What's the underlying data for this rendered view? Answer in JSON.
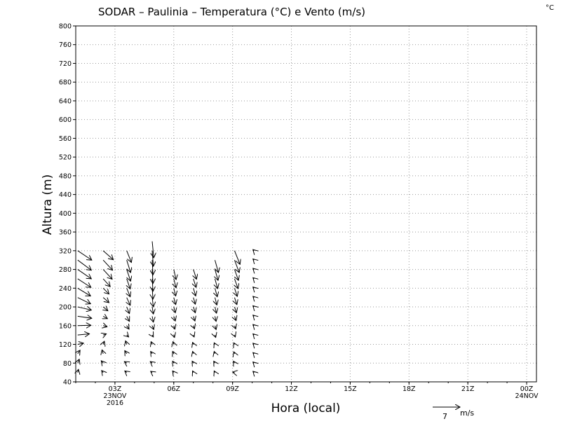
{
  "chart_data": {
    "type": "wind-barb-profile",
    "title": "SODAR – Paulinia – Temperatura (°C) e Vento (m/s)",
    "unit_corner": "°C",
    "xlabel": "Hora (local)",
    "ylabel": "Altura (m)",
    "xlim": [
      0,
      23.5
    ],
    "ylim": [
      40,
      800
    ],
    "grid": true,
    "y_ticks": [
      40,
      80,
      120,
      160,
      200,
      240,
      280,
      320,
      360,
      400,
      440,
      480,
      520,
      560,
      600,
      640,
      680,
      720,
      760,
      800
    ],
    "x_ticks": [
      {
        "x": 2,
        "label": "03Z",
        "sub": [
          "23NOV",
          "2016"
        ]
      },
      {
        "x": 5,
        "label": "06Z",
        "sub": []
      },
      {
        "x": 8,
        "label": "09Z",
        "sub": []
      },
      {
        "x": 11,
        "label": "12Z",
        "sub": []
      },
      {
        "x": 14,
        "label": "15Z",
        "sub": []
      },
      {
        "x": 17,
        "label": "18Z",
        "sub": []
      },
      {
        "x": 20,
        "label": "21Z",
        "sub": []
      },
      {
        "x": 23,
        "label": "00Z",
        "sub": [
          "24NOV"
        ]
      }
    ],
    "reference_vector": {
      "speed": 7,
      "unit": "m/s"
    },
    "series": [
      {
        "time": 0.1,
        "vectors": [
          {
            "h": 320,
            "u": 3.6,
            "v": -2.4
          },
          {
            "h": 300,
            "u": 3.5,
            "v": -2.6
          },
          {
            "h": 280,
            "u": 3.5,
            "v": -2.4
          },
          {
            "h": 260,
            "u": 3.4,
            "v": -2.2
          },
          {
            "h": 240,
            "u": 3.3,
            "v": -2.0
          },
          {
            "h": 220,
            "u": 3.3,
            "v": -1.6
          },
          {
            "h": 200,
            "u": 3.5,
            "v": -0.8
          },
          {
            "h": 180,
            "u": 3.6,
            "v": -0.5
          },
          {
            "h": 160,
            "u": 3.4,
            "v": 0.1
          },
          {
            "h": 140,
            "u": 3.0,
            "v": 0.3
          },
          {
            "h": 120,
            "u": 1.5,
            "v": 0.3
          },
          {
            "h": 100,
            "u": 0.6,
            "v": 0.9
          },
          {
            "h": 80,
            "u": 0.4,
            "v": 1.0
          },
          {
            "h": 60,
            "u": 0.2,
            "v": 0.8
          }
        ]
      },
      {
        "time": 1.4,
        "vectors": [
          {
            "h": 320,
            "u": 2.6,
            "v": -2.3
          },
          {
            "h": 300,
            "u": 2.4,
            "v": -2.6
          },
          {
            "h": 280,
            "u": 2.3,
            "v": -2.5
          },
          {
            "h": 260,
            "u": 1.8,
            "v": -2.0
          },
          {
            "h": 240,
            "u": 1.5,
            "v": -1.5
          },
          {
            "h": 220,
            "u": 1.5,
            "v": -1.3
          },
          {
            "h": 200,
            "u": 1.2,
            "v": -1.0
          },
          {
            "h": 180,
            "u": 1.1,
            "v": -0.6
          },
          {
            "h": 160,
            "u": 1.0,
            "v": -0.3
          },
          {
            "h": 140,
            "u": 0.8,
            "v": 0.3
          },
          {
            "h": 120,
            "u": 0.3,
            "v": 0.8
          },
          {
            "h": 100,
            "u": -0.3,
            "v": 1.0
          },
          {
            "h": 80,
            "u": -0.5,
            "v": 0.6
          },
          {
            "h": 60,
            "u": -0.4,
            "v": 0.5
          }
        ]
      },
      {
        "time": 2.6,
        "vectors": [
          {
            "h": 320,
            "u": 1.2,
            "v": -3.0
          },
          {
            "h": 300,
            "u": 1.0,
            "v": -3.2
          },
          {
            "h": 280,
            "u": 1.0,
            "v": -3.0
          },
          {
            "h": 260,
            "u": 0.9,
            "v": -2.6
          },
          {
            "h": 240,
            "u": 0.9,
            "v": -2.2
          },
          {
            "h": 220,
            "u": 0.9,
            "v": -2.0
          },
          {
            "h": 200,
            "u": 0.7,
            "v": -1.7
          },
          {
            "h": 180,
            "u": 0.7,
            "v": -1.3
          },
          {
            "h": 160,
            "u": 0.6,
            "v": -0.9
          },
          {
            "h": 140,
            "u": 0.5,
            "v": -0.5
          },
          {
            "h": 120,
            "u": -0.3,
            "v": 0.9
          },
          {
            "h": 100,
            "u": -0.5,
            "v": 0.8
          },
          {
            "h": 80,
            "u": -0.6,
            "v": 0.4
          },
          {
            "h": 60,
            "u": -0.5,
            "v": 0.4
          }
        ]
      },
      {
        "time": 3.9,
        "vectors": [
          {
            "h": 340,
            "u": 0.4,
            "v": -4.2
          },
          {
            "h": 320,
            "u": 0.3,
            "v": -4.0
          },
          {
            "h": 300,
            "u": 0.2,
            "v": -3.8
          },
          {
            "h": 280,
            "u": 0.2,
            "v": -3.6
          },
          {
            "h": 260,
            "u": 0.2,
            "v": -3.2
          },
          {
            "h": 240,
            "u": 0.2,
            "v": -2.8
          },
          {
            "h": 220,
            "u": 0.3,
            "v": -2.4
          },
          {
            "h": 200,
            "u": 0.3,
            "v": -1.8
          },
          {
            "h": 180,
            "u": 0.3,
            "v": -1.5
          },
          {
            "h": 160,
            "u": 0.4,
            "v": -1.0
          },
          {
            "h": 140,
            "u": 0.3,
            "v": -0.5
          },
          {
            "h": 120,
            "u": -0.3,
            "v": 0.7
          },
          {
            "h": 100,
            "u": -0.4,
            "v": 0.6
          },
          {
            "h": 80,
            "u": -0.5,
            "v": 0.4
          },
          {
            "h": 60,
            "u": -0.4,
            "v": 0.3
          }
        ]
      },
      {
        "time": 5.0,
        "vectors": [
          {
            "h": 280,
            "u": 0.6,
            "v": -2.6
          },
          {
            "h": 260,
            "u": 0.6,
            "v": -2.3
          },
          {
            "h": 240,
            "u": 0.5,
            "v": -2.0
          },
          {
            "h": 220,
            "u": 0.5,
            "v": -1.8
          },
          {
            "h": 200,
            "u": 0.4,
            "v": -1.5
          },
          {
            "h": 180,
            "u": 0.4,
            "v": -1.2
          },
          {
            "h": 160,
            "u": 0.3,
            "v": -0.9
          },
          {
            "h": 140,
            "u": 0.2,
            "v": -0.6
          },
          {
            "h": 120,
            "u": -0.2,
            "v": 0.7
          },
          {
            "h": 100,
            "u": -0.3,
            "v": 0.6
          },
          {
            "h": 80,
            "u": -0.3,
            "v": 0.5
          },
          {
            "h": 60,
            "u": -0.3,
            "v": 0.4
          }
        ]
      },
      {
        "time": 6.0,
        "vectors": [
          {
            "h": 280,
            "u": 0.8,
            "v": -2.5
          },
          {
            "h": 260,
            "u": 0.7,
            "v": -2.2
          },
          {
            "h": 240,
            "u": 0.6,
            "v": -2.0
          },
          {
            "h": 220,
            "u": 0.5,
            "v": -1.7
          },
          {
            "h": 200,
            "u": 0.5,
            "v": -1.5
          },
          {
            "h": 180,
            "u": 0.4,
            "v": -1.2
          },
          {
            "h": 160,
            "u": 0.3,
            "v": -0.8
          },
          {
            "h": 140,
            "u": 0.2,
            "v": -0.5
          },
          {
            "h": 120,
            "u": -0.2,
            "v": 0.5
          },
          {
            "h": 100,
            "u": -0.2,
            "v": 0.6
          },
          {
            "h": 80,
            "u": -0.3,
            "v": 0.5
          },
          {
            "h": 60,
            "u": -0.2,
            "v": 0.4
          }
        ]
      },
      {
        "time": 7.1,
        "vectors": [
          {
            "h": 300,
            "u": 0.9,
            "v": -3.2
          },
          {
            "h": 280,
            "u": 0.8,
            "v": -2.8
          },
          {
            "h": 260,
            "u": 0.7,
            "v": -2.5
          },
          {
            "h": 240,
            "u": 0.6,
            "v": -2.2
          },
          {
            "h": 220,
            "u": 0.5,
            "v": -1.9
          },
          {
            "h": 200,
            "u": 0.4,
            "v": -1.6
          },
          {
            "h": 180,
            "u": 0.3,
            "v": -1.3
          },
          {
            "h": 160,
            "u": 0.3,
            "v": -1.0
          },
          {
            "h": 140,
            "u": 0.2,
            "v": -0.6
          },
          {
            "h": 120,
            "u": -0.2,
            "v": 0.4
          },
          {
            "h": 100,
            "u": -0.2,
            "v": 0.6
          },
          {
            "h": 80,
            "u": -0.3,
            "v": 0.5
          },
          {
            "h": 60,
            "u": -0.2,
            "v": 0.4
          }
        ]
      },
      {
        "time": 8.1,
        "vectors": [
          {
            "h": 320,
            "u": 1.4,
            "v": -3.5
          },
          {
            "h": 300,
            "u": 1.2,
            "v": -3.2
          },
          {
            "h": 280,
            "u": 1.0,
            "v": -2.8
          },
          {
            "h": 260,
            "u": 0.9,
            "v": -2.5
          },
          {
            "h": 240,
            "u": 0.7,
            "v": -2.1
          },
          {
            "h": 220,
            "u": 0.6,
            "v": -1.8
          },
          {
            "h": 200,
            "u": 0.5,
            "v": -1.5
          },
          {
            "h": 180,
            "u": 0.4,
            "v": -1.1
          },
          {
            "h": 160,
            "u": 0.3,
            "v": -0.8
          },
          {
            "h": 140,
            "u": 0.2,
            "v": -0.5
          },
          {
            "h": 120,
            "u": -0.2,
            "v": 0.4
          },
          {
            "h": 100,
            "u": -0.2,
            "v": 0.5
          },
          {
            "h": 80,
            "u": -0.3,
            "v": 0.5
          },
          {
            "h": 60,
            "u": -0.5,
            "v": 0.1
          }
        ]
      },
      {
        "time": 9.1,
        "vectors": [
          {
            "h": 320,
            "u": -0.3,
            "v": 0.3
          },
          {
            "h": 300,
            "u": -0.3,
            "v": 0.3
          },
          {
            "h": 280,
            "u": -0.3,
            "v": 0.3
          },
          {
            "h": 260,
            "u": -0.3,
            "v": 0.3
          },
          {
            "h": 240,
            "u": -0.3,
            "v": 0.3
          },
          {
            "h": 220,
            "u": -0.3,
            "v": 0.3
          },
          {
            "h": 200,
            "u": -0.3,
            "v": 0.3
          },
          {
            "h": 180,
            "u": -0.3,
            "v": 0.3
          },
          {
            "h": 160,
            "u": -0.3,
            "v": 0.3
          },
          {
            "h": 140,
            "u": -0.3,
            "v": 0.3
          },
          {
            "h": 120,
            "u": -0.3,
            "v": 0.3
          },
          {
            "h": 100,
            "u": -0.3,
            "v": 0.3
          },
          {
            "h": 80,
            "u": -0.3,
            "v": 0.3
          },
          {
            "h": 60,
            "u": -0.3,
            "v": 0.3
          }
        ]
      }
    ]
  }
}
